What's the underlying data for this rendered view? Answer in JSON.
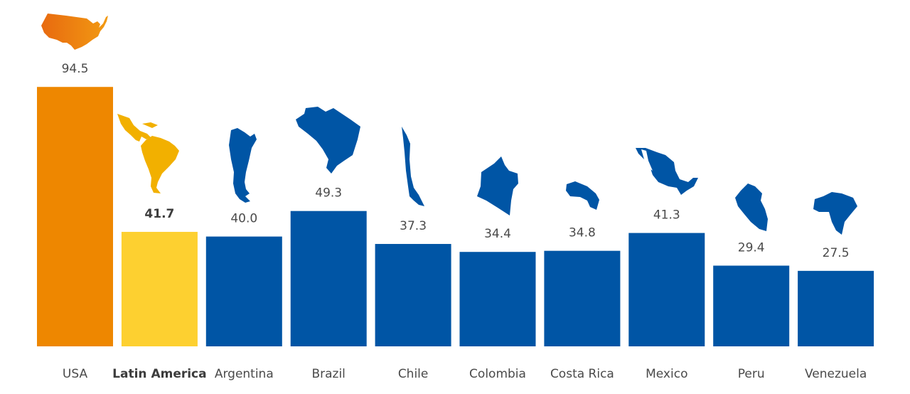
{
  "chart_data": {
    "type": "bar",
    "title": "",
    "xlabel": "",
    "ylabel": "",
    "ylim": [
      0,
      100
    ],
    "grid": false,
    "categories": [
      "USA",
      "Latin America",
      "Argentina",
      "Brazil",
      "Chile",
      "Colombia",
      "Costa Rica",
      "Mexico",
      "Peru",
      "Venezuela"
    ],
    "values": [
      94.5,
      41.7,
      40.0,
      49.3,
      37.3,
      34.4,
      34.8,
      41.3,
      29.4,
      27.5
    ],
    "value_labels": [
      "94.5",
      "41.7",
      "40.0",
      "49.3",
      "37.3",
      "34.4",
      "34.8",
      "41.3",
      "29.4",
      "27.5"
    ],
    "colors": [
      "#EE8700",
      "#FDD030",
      "#0055A5",
      "#0055A5",
      "#0055A5",
      "#0055A5",
      "#0055A5",
      "#0055A5",
      "#0055A5",
      "#0055A5"
    ],
    "highlighted_category": "Latin America",
    "icons": [
      "usa-map-icon",
      "latin-america-map-icon",
      "argentina-map-icon",
      "brazil-map-icon",
      "chile-map-icon",
      "colombia-map-icon",
      "costa-rica-map-icon",
      "mexico-map-icon",
      "peru-map-icon",
      "venezuela-map-icon"
    ]
  }
}
